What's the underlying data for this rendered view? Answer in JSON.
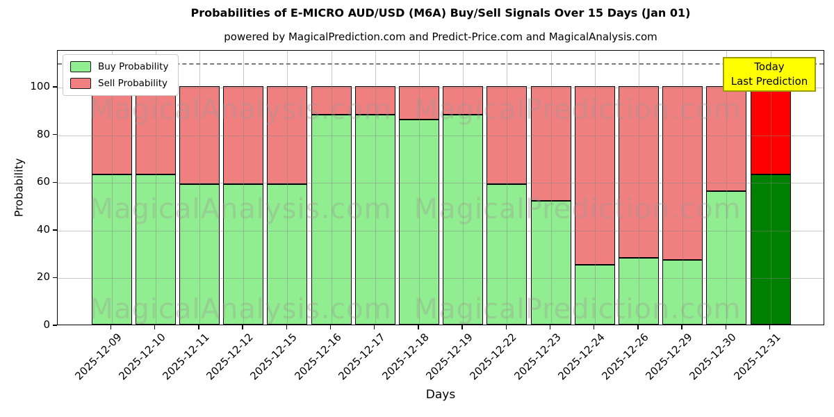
{
  "title": "Probabilities of E-MICRO AUD/USD (M6A) Buy/Sell Signals Over 15 Days (Jan 01)",
  "subtitle": "powered by MagicalPrediction.com and Predict-Price.com and MagicalAnalysis.com",
  "axes": {
    "x_label": "Days",
    "y_label": "Probability",
    "y_ticks": [
      0,
      20,
      40,
      60,
      80,
      100
    ],
    "y_max": 115.5,
    "dashed_line_y": 110,
    "grid": true
  },
  "legend": {
    "items": [
      {
        "label": "Buy Probability",
        "color": "#90ee90"
      },
      {
        "label": "Sell Probability",
        "color": "#f08080"
      }
    ]
  },
  "annotation": {
    "line1": "Today",
    "line2": "Last Prediction",
    "bg_color": "#ffff00",
    "border_color": "#9c9c00"
  },
  "watermarks": {
    "left_text": "MagicalAnalysis.com",
    "right_text": "MagicalPrediction.com",
    "color": "rgba(160,150,150,0.35)"
  },
  "chart_data": {
    "type": "bar",
    "stacked": true,
    "title": "Probabilities of E-MICRO AUD/USD (M6A) Buy/Sell Signals Over 15 Days (Jan 01)",
    "xlabel": "Days",
    "ylabel": "Probability",
    "ylim": [
      0,
      115.5
    ],
    "grid": true,
    "legend_position": "upper-left",
    "dashed_reference_line_y": 110,
    "categories": [
      "2025-12-09",
      "2025-12-10",
      "2025-12-11",
      "2025-12-12",
      "2025-12-15",
      "2025-12-16",
      "2025-12-17",
      "2025-12-18",
      "2025-12-19",
      "2025-12-22",
      "2025-12-23",
      "2025-12-24",
      "2025-12-26",
      "2025-12-29",
      "2025-12-30",
      "2025-12-31"
    ],
    "series": [
      {
        "name": "Buy Probability",
        "color": "#90ee90",
        "values": [
          63,
          63,
          59,
          59,
          59,
          88,
          88,
          86,
          88,
          59,
          52,
          25,
          28,
          27,
          56,
          63
        ]
      },
      {
        "name": "Sell Probability",
        "color": "#f08080",
        "values": [
          37,
          37,
          41,
          41,
          41,
          12,
          12,
          14,
          12,
          41,
          48,
          75,
          72,
          73,
          44,
          37
        ]
      }
    ],
    "highlight_last_bar": {
      "index": 15,
      "buy_color": "#008000",
      "sell_color": "#ff0000",
      "note": "Today / Last Prediction"
    }
  }
}
